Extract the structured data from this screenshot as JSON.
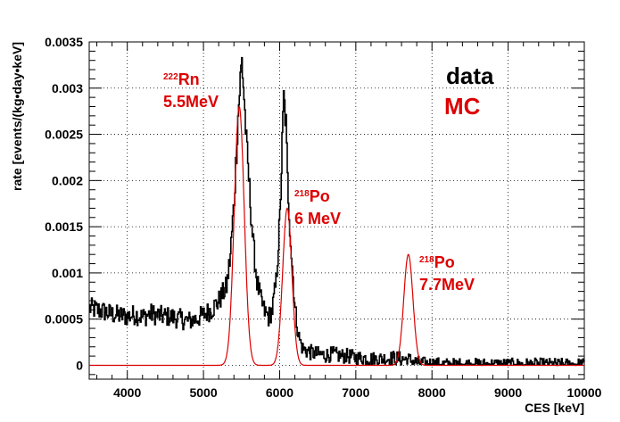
{
  "chart_data": {
    "type": "line",
    "xlabel": "CES [keV]",
    "ylabel": "rate [events/(kg•day•keV]",
    "xlim": [
      3500,
      10000
    ],
    "ylim": [
      -0.00015,
      0.0035
    ],
    "grid": true,
    "x_ticks": [
      "4000",
      "5000",
      "6000",
      "7000",
      "8000",
      "9000",
      "10000"
    ],
    "y_ticks": [
      "0",
      "0.0005",
      "0.001",
      "0.0015",
      "0.002",
      "0.0025",
      "0.003",
      "0.0035"
    ],
    "series": [
      {
        "name": "data",
        "color": "#000000",
        "points": [
          [
            3500,
            0.00062
          ],
          [
            3600,
            0.0006
          ],
          [
            3700,
            0.00058
          ],
          [
            3800,
            0.00055
          ],
          [
            3900,
            0.00054
          ],
          [
            4000,
            0.00053
          ],
          [
            4100,
            0.00055
          ],
          [
            4200,
            0.00052
          ],
          [
            4300,
            0.00056
          ],
          [
            4400,
            0.00054
          ],
          [
            4500,
            0.00053
          ],
          [
            4600,
            0.00052
          ],
          [
            4700,
            0.0005
          ],
          [
            4800,
            0.00048
          ],
          [
            4900,
            0.0005
          ],
          [
            5000,
            0.00055
          ],
          [
            5100,
            0.0006
          ],
          [
            5200,
            0.0007
          ],
          [
            5300,
            0.00085
          ],
          [
            5350,
            0.0012
          ],
          [
            5400,
            0.0018
          ],
          [
            5450,
            0.0027
          ],
          [
            5480,
            0.0031
          ],
          [
            5500,
            0.0033
          ],
          [
            5530,
            0.0029
          ],
          [
            5560,
            0.0024
          ],
          [
            5600,
            0.0019
          ],
          [
            5650,
            0.0013
          ],
          [
            5700,
            0.0009
          ],
          [
            5750,
            0.0007
          ],
          [
            5800,
            0.00058
          ],
          [
            5850,
            0.00052
          ],
          [
            5900,
            0.0006
          ],
          [
            5950,
            0.0009
          ],
          [
            6000,
            0.0016
          ],
          [
            6030,
            0.0024
          ],
          [
            6050,
            0.0029
          ],
          [
            6080,
            0.0026
          ],
          [
            6100,
            0.002
          ],
          [
            6150,
            0.0012
          ],
          [
            6200,
            0.0006
          ],
          [
            6250,
            0.0003
          ],
          [
            6300,
            0.00018
          ],
          [
            6350,
            0.00016
          ],
          [
            6400,
            0.00014
          ],
          [
            6500,
            0.00012
          ],
          [
            6600,
            0.00011
          ],
          [
            6700,
            0.00012
          ],
          [
            6800,
            0.0001
          ],
          [
            6900,
            0.0001
          ],
          [
            7000,
            8e-05
          ],
          [
            7100,
            8e-05
          ],
          [
            7200,
            7e-05
          ],
          [
            7300,
            7e-05
          ],
          [
            7400,
            7e-05
          ],
          [
            7500,
            8e-05
          ],
          [
            7600,
            7e-05
          ],
          [
            7700,
            6e-05
          ],
          [
            7800,
            3e-05
          ],
          [
            7900,
            2e-05
          ],
          [
            8000,
            2e-05
          ],
          [
            8200,
            1e-05
          ],
          [
            8400,
            1e-05
          ],
          [
            8600,
            1e-05
          ],
          [
            8800,
            1e-05
          ],
          [
            9000,
            1e-05
          ],
          [
            9200,
            1e-05
          ],
          [
            9400,
            1e-05
          ],
          [
            9600,
            1e-05
          ],
          [
            9800,
            1e-05
          ],
          [
            10000,
            1e-05
          ]
        ]
      },
      {
        "name": "MC",
        "color": "#dd0000",
        "peaks": [
          {
            "center": 5470,
            "sigma": 65,
            "height": 0.0028
          },
          {
            "center": 6100,
            "sigma": 60,
            "height": 0.0017
          },
          {
            "center": 7690,
            "sigma": 60,
            "height": 0.0012
          }
        ]
      }
    ],
    "legend": {
      "data_label": "data",
      "mc_label": "MC",
      "data_color": "#000000",
      "mc_color": "#dd0000"
    },
    "annotations": [
      {
        "sup": "222",
        "name": "Rn",
        "energy": "5.5MeV",
        "color": "#dd0000"
      },
      {
        "sup": "218",
        "name": "Po",
        "energy": "6 MeV",
        "color": "#dd0000"
      },
      {
        "sup": "218",
        "name": "Po",
        "energy": "7.7MeV",
        "color": "#dd0000"
      }
    ]
  }
}
